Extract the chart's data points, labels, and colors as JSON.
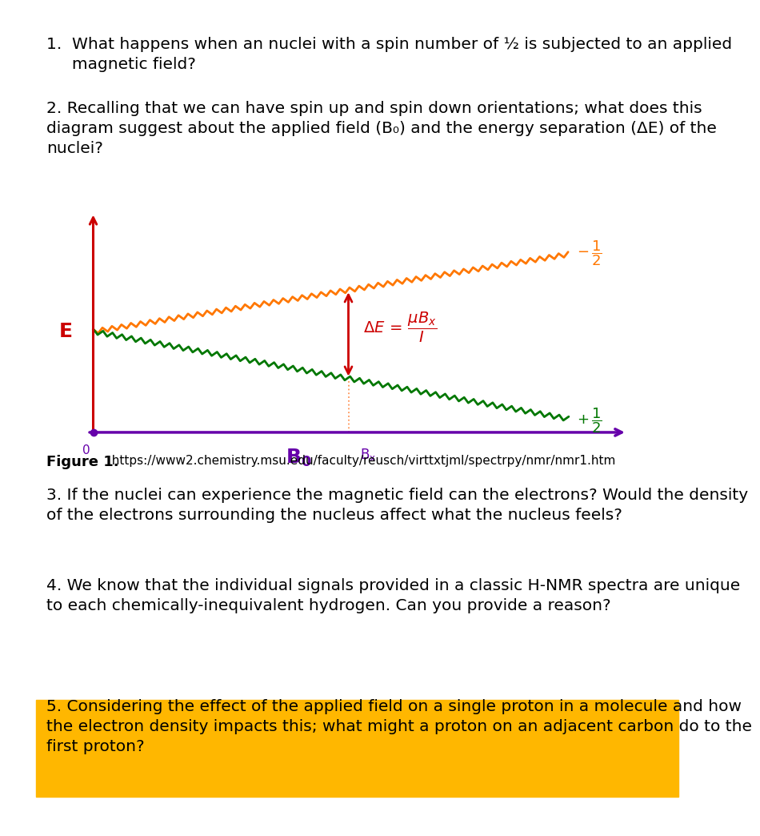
{
  "bg_color": "#ffffff",
  "text_color": "#000000",
  "q1_line1": "1.  What happens when an nuclei with a spin number of ½ is subjected to an applied",
  "q1_line2": "     magnetic field?",
  "q2_text": "2. Recalling that we can have spin up and spin down orientations; what does this\ndiagram suggest about the applied field (B₀) and the energy separation (ΔE) of the\nnuclei?",
  "q3_text": "3. If the nuclei can experience the magnetic field can the electrons? Would the density\nof the electrons surrounding the nucleus affect what the nucleus feels?",
  "q4_text": "4. We know that the individual signals provided in a classic H-NMR spectra are unique\nto each chemically-inequivalent hydrogen. Can you provide a reason?",
  "q5_text": "5. Considering the effect of the applied field on a single proton in a molecule and how\nthe electron density impacts this; what might a proton on an adjacent carbon do to the\nfirst proton?",
  "fig_caption_bold": "Figure 1.",
  "fig_caption_normal": "  https://www2.chemistry.msu.edu/faculty/reusch/virttxtjml/spectrpy/nmr/nmr1.htm",
  "axis_color": "#cc0000",
  "purple_color": "#6600aa",
  "orange_color": "#FF7700",
  "green_color": "#007700",
  "red_color": "#cc0000",
  "highlight_color": "#FFB700",
  "font_size_body": 14.5,
  "font_size_caption_bold": 13,
  "font_size_caption_url": 11
}
